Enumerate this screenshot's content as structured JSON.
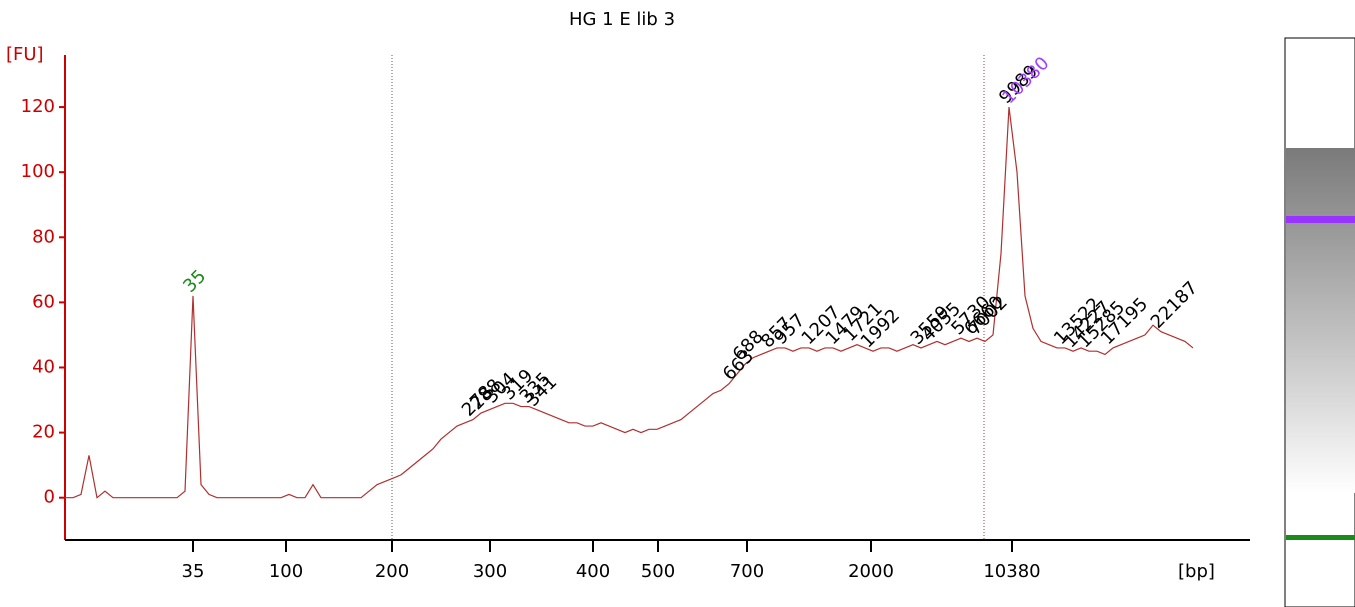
{
  "chart_data": {
    "type": "line",
    "title": "HG 1 E lib 3",
    "y_label": "[FU]",
    "x_label": "[bp]",
    "color": "#b03030",
    "axis_color": "#cc0000",
    "ylim": [
      -13,
      136
    ],
    "yticks": [
      0,
      20,
      40,
      60,
      80,
      100,
      120
    ],
    "xticks": [
      35,
      100,
      200,
      300,
      400,
      500,
      700,
      2000,
      10380
    ],
    "values": [
      0,
      0,
      1,
      13,
      0,
      2,
      0,
      0,
      0,
      0,
      0,
      0,
      0,
      0,
      0,
      2,
      62,
      4,
      1,
      0,
      0,
      0,
      0,
      0,
      0,
      0,
      0,
      0,
      1,
      0,
      0,
      4,
      0,
      0,
      0,
      0,
      0,
      0,
      2,
      4,
      5,
      6,
      7,
      9,
      11,
      13,
      15,
      18,
      20,
      22,
      23,
      24,
      26,
      27,
      28,
      29,
      29,
      28,
      28,
      27,
      26,
      25,
      24,
      23,
      23,
      22,
      22,
      23,
      22,
      21,
      20,
      21,
      20,
      21,
      21,
      22,
      23,
      24,
      26,
      28,
      30,
      32,
      33,
      35,
      38,
      41,
      43,
      44,
      45,
      46,
      46,
      45,
      46,
      46,
      45,
      46,
      46,
      45,
      46,
      47,
      46,
      45,
      46,
      46,
      45,
      46,
      47,
      46,
      47,
      48,
      47,
      48,
      49,
      48,
      49,
      48,
      50,
      75,
      120,
      100,
      62,
      52,
      48,
      47,
      46,
      46,
      45,
      46,
      45,
      45,
      44,
      46,
      47,
      48,
      49,
      50,
      53,
      51,
      50,
      49,
      48,
      46
    ],
    "peaks": [
      {
        "bp": 35,
        "color": "#1a8a1a"
      },
      {
        "bp": 278,
        "color": "#000000"
      },
      {
        "bp": 288,
        "color": "#000000"
      },
      {
        "bp": 304,
        "color": "#000000"
      },
      {
        "bp": 319,
        "color": "#000000"
      },
      {
        "bp": 335,
        "color": "#000000"
      },
      {
        "bp": 341,
        "color": "#000000"
      },
      {
        "bp": 663,
        "color": "#000000"
      },
      {
        "bp": 688,
        "color": "#000000"
      },
      {
        "bp": 857,
        "color": "#000000"
      },
      {
        "bp": 957,
        "color": "#000000"
      },
      {
        "bp": 1207,
        "color": "#000000"
      },
      {
        "bp": 1479,
        "color": "#000000"
      },
      {
        "bp": 1721,
        "color": "#000000"
      },
      {
        "bp": 1992,
        "color": "#000000"
      },
      {
        "bp": 3559,
        "color": "#000000"
      },
      {
        "bp": 4055,
        "color": "#000000"
      },
      {
        "bp": 5730,
        "color": "#000000"
      },
      {
        "bp": 6660,
        "color": "#000000"
      },
      {
        "bp": 7002,
        "color": "#000000"
      },
      {
        "bp": 9989,
        "color": "#000000"
      },
      {
        "bp": 10380,
        "color": "#a040ff"
      },
      {
        "bp": 13522,
        "color": "#000000"
      },
      {
        "bp": 14227,
        "color": "#000000"
      },
      {
        "bp": 15285,
        "color": "#000000"
      },
      {
        "bp": 17195,
        "color": "#000000"
      },
      {
        "bp": 22187,
        "color": "#000000"
      }
    ]
  }
}
